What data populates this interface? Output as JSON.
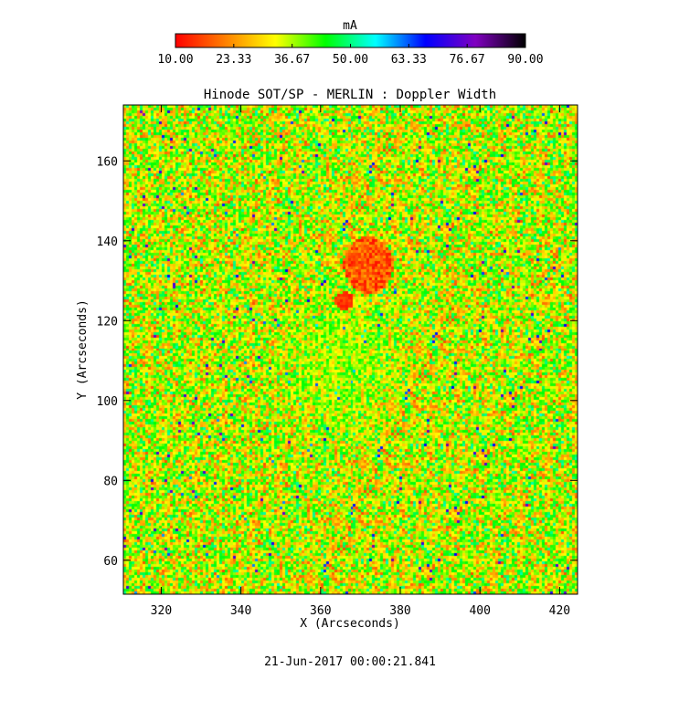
{
  "chart_data": {
    "type": "heatmap",
    "title": "Hinode SOT/SP - MERLIN : Doppler Width",
    "xlabel": "X (Arcseconds)",
    "ylabel": "Y (Arcseconds)",
    "timestamp": "21-Jun-2017 00:00:21.841",
    "colorbar": {
      "label": "mA",
      "range": [
        10.0,
        90.0
      ],
      "tick_values": [
        10.0,
        23.33,
        36.67,
        50.0,
        63.33,
        76.67,
        90.0
      ],
      "tick_labels": [
        "10.00",
        "23.33",
        "36.67",
        "50.00",
        "63.33",
        "76.67",
        "90.00"
      ],
      "colormap": [
        "#ff0000",
        "#ff8000",
        "#ffff00",
        "#00ff00",
        "#00ffff",
        "#0000ff",
        "#8000c0",
        "#000000"
      ],
      "placement": "top"
    },
    "xlim": [
      310.5,
      424.5
    ],
    "ylim": [
      51.5,
      174.0
    ],
    "x_ticks": [
      320,
      340,
      360,
      380,
      400,
      420
    ],
    "x_tick_labels": [
      "320",
      "340",
      "360",
      "380",
      "400",
      "420"
    ],
    "y_ticks": [
      60,
      80,
      100,
      120,
      140,
      160
    ],
    "y_tick_labels": [
      "60",
      "80",
      "100",
      "120",
      "140",
      "160"
    ],
    "field": {
      "background_mean_mA": 35,
      "sunspot_umbra_center": [
        366,
        125
      ],
      "sunspot_umbra_value_mA": 12,
      "penumbra_center": [
        372,
        134
      ],
      "penumbra_value_mA": 18,
      "plage_region_center": [
        365,
        110
      ],
      "plage_value_mA": 40
    }
  }
}
